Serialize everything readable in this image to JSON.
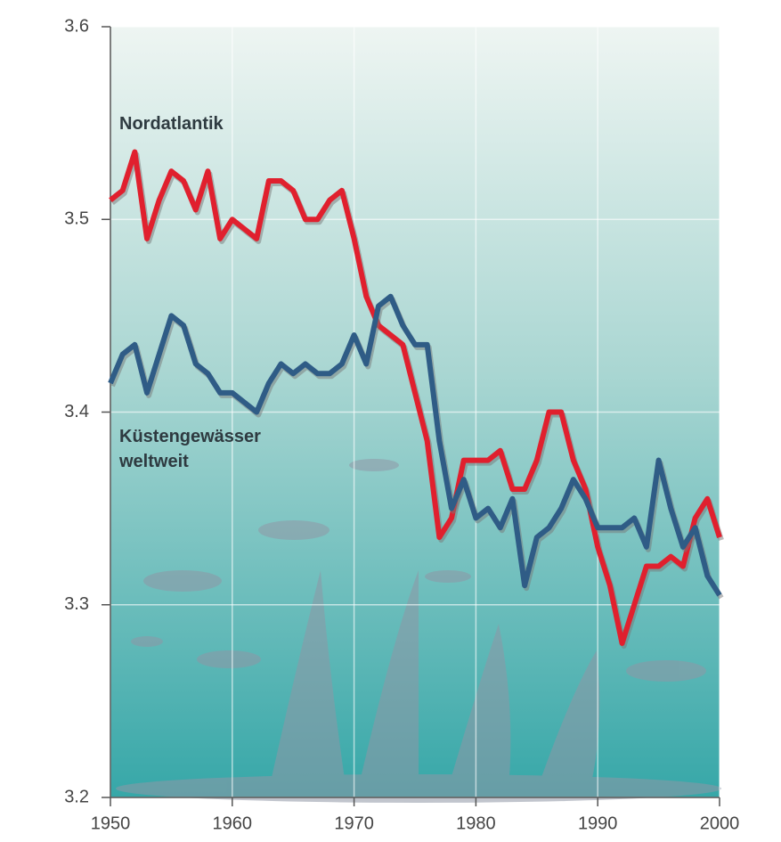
{
  "chart_data": {
    "type": "line",
    "x": [
      1950,
      1951,
      1952,
      1953,
      1954,
      1955,
      1956,
      1957,
      1958,
      1959,
      1960,
      1961,
      1962,
      1963,
      1964,
      1965,
      1966,
      1967,
      1968,
      1969,
      1970,
      1971,
      1972,
      1973,
      1974,
      1975,
      1976,
      1977,
      1978,
      1979,
      1980,
      1981,
      1982,
      1983,
      1984,
      1985,
      1986,
      1987,
      1988,
      1989,
      1990,
      1991,
      1992,
      1993,
      1994,
      1995,
      1996,
      1997,
      1998,
      1999,
      2000
    ],
    "series": [
      {
        "name": "Nordatlantik",
        "color": "#e0202e",
        "values": [
          3.51,
          3.515,
          3.535,
          3.49,
          3.51,
          3.525,
          3.52,
          3.505,
          3.525,
          3.49,
          3.5,
          3.495,
          3.49,
          3.52,
          3.52,
          3.515,
          3.5,
          3.5,
          3.51,
          3.515,
          3.49,
          3.46,
          3.445,
          3.44,
          3.435,
          3.41,
          3.385,
          3.335,
          3.345,
          3.375,
          3.375,
          3.375,
          3.38,
          3.36,
          3.36,
          3.375,
          3.4,
          3.4,
          3.375,
          3.36,
          3.33,
          3.31,
          3.28,
          3.3,
          3.32,
          3.32,
          3.325,
          3.32,
          3.345,
          3.355,
          3.335
        ]
      },
      {
        "name": "Küstengewässer weltweit",
        "color": "#2f5c86",
        "values": [
          3.415,
          3.43,
          3.435,
          3.41,
          3.43,
          3.45,
          3.445,
          3.425,
          3.42,
          3.41,
          3.41,
          3.405,
          3.4,
          3.415,
          3.425,
          3.42,
          3.425,
          3.42,
          3.42,
          3.425,
          3.44,
          3.425,
          3.455,
          3.46,
          3.445,
          3.435,
          3.435,
          3.385,
          3.35,
          3.365,
          3.345,
          3.35,
          3.34,
          3.355,
          3.31,
          3.335,
          3.34,
          3.35,
          3.365,
          3.355,
          3.34,
          3.34,
          3.34,
          3.345,
          3.33,
          3.375,
          3.35,
          3.33,
          3.34,
          3.315,
          3.305
        ]
      }
    ],
    "xlim": [
      1950,
      2000
    ],
    "xticks": [
      1950,
      1960,
      1970,
      1980,
      1990,
      2000
    ],
    "ylim": [
      3.2,
      3.6
    ],
    "yticks": [
      3.2,
      3.3,
      3.4,
      3.5,
      3.6
    ],
    "grid": true
  }
}
